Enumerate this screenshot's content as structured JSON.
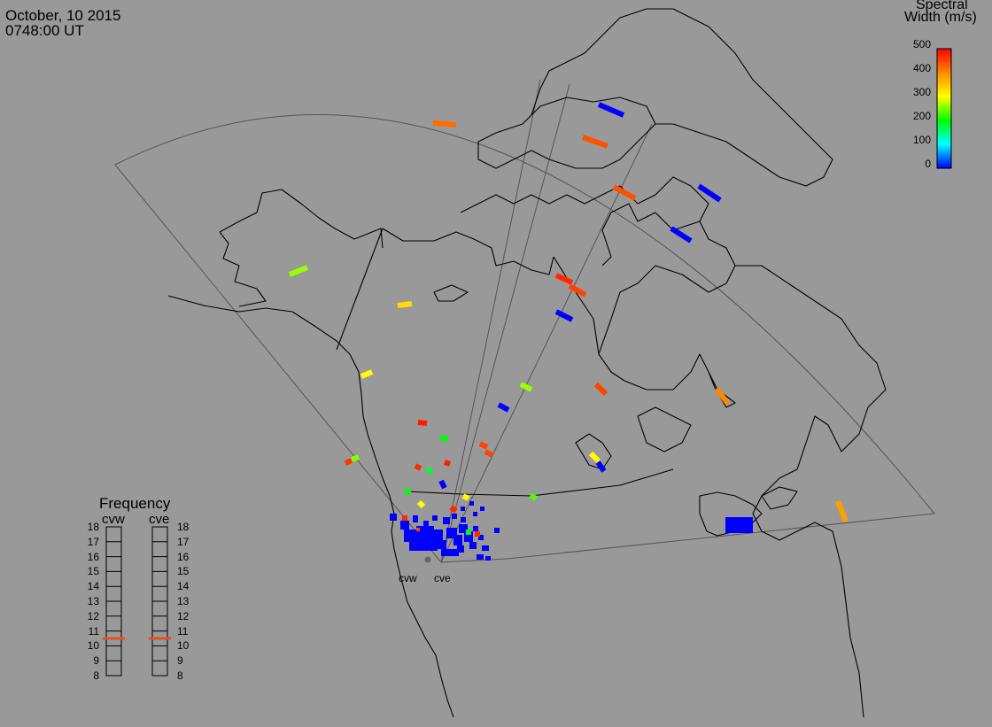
{
  "header": {
    "date": "October, 10 2015",
    "time": "0748:00 UT"
  },
  "colorbar": {
    "title_line1": "Spectral",
    "title_line2": "Width (m/s)",
    "ticks": [
      500,
      400,
      300,
      200,
      100,
      0
    ],
    "range": [
      0,
      500
    ],
    "colors": [
      "#0000ff",
      "#00ffff",
      "#00ff00",
      "#ffff00",
      "#ff0000"
    ]
  },
  "frequency": {
    "title": "Frequency",
    "radars": [
      {
        "name": "cvw",
        "value": 11
      },
      {
        "name": "cve",
        "value": 11
      }
    ],
    "ticks": [
      18,
      17,
      16,
      15,
      14,
      13,
      12,
      11,
      10,
      9,
      8
    ],
    "marker_color": "#e8501a"
  },
  "sites": [
    {
      "label": "cvw"
    },
    {
      "label": "cve"
    }
  ],
  "echoes": [
    {
      "x1": 489,
      "y1": 139,
      "x2": 515,
      "y2": 141,
      "width": 420
    },
    {
      "x1": 676,
      "y1": 118,
      "x2": 704,
      "y2": 130,
      "width": 0
    },
    {
      "x1": 658,
      "y1": 155,
      "x2": 686,
      "y2": 165,
      "width": 440
    },
    {
      "x1": 693,
      "y1": 211,
      "x2": 717,
      "y2": 224,
      "width": 440
    },
    {
      "x1": 789,
      "y1": 210,
      "x2": 813,
      "y2": 226,
      "width": 0
    },
    {
      "x1": 758,
      "y1": 258,
      "x2": 780,
      "y2": 272,
      "width": 0
    },
    {
      "x1": 628,
      "y1": 311,
      "x2": 646,
      "y2": 319,
      "width": 470
    },
    {
      "x1": 643,
      "y1": 323,
      "x2": 661,
      "y2": 333,
      "width": 450
    },
    {
      "x1": 628,
      "y1": 352,
      "x2": 646,
      "y2": 361,
      "width": 0
    },
    {
      "x1": 327,
      "y1": 310,
      "x2": 347,
      "y2": 302,
      "width": 260
    },
    {
      "x1": 449,
      "y1": 345,
      "x2": 465,
      "y2": 343,
      "width": 330
    },
    {
      "x1": 408,
      "y1": 425,
      "x2": 420,
      "y2": 420,
      "width": 300
    },
    {
      "x1": 588,
      "y1": 434,
      "x2": 600,
      "y2": 440,
      "width": 260
    },
    {
      "x1": 673,
      "y1": 434,
      "x2": 684,
      "y2": 445,
      "width": 450
    },
    {
      "x1": 809,
      "y1": 439,
      "x2": 822,
      "y2": 456,
      "width": 400
    },
    {
      "x1": 563,
      "y1": 457,
      "x2": 574,
      "y2": 463,
      "width": 0
    },
    {
      "x1": 472,
      "y1": 477,
      "x2": 482,
      "y2": 478,
      "width": 480
    },
    {
      "x1": 497,
      "y1": 494,
      "x2": 506,
      "y2": 496,
      "width": 200
    },
    {
      "x1": 542,
      "y1": 501,
      "x2": 550,
      "y2": 505,
      "width": 450
    },
    {
      "x1": 548,
      "y1": 510,
      "x2": 556,
      "y2": 514,
      "width": 450
    },
    {
      "x1": 667,
      "y1": 512,
      "x2": 676,
      "y2": 521,
      "width": 300
    },
    {
      "x1": 675,
      "y1": 522,
      "x2": 682,
      "y2": 532,
      "width": 0
    },
    {
      "x1": 390,
      "y1": 523,
      "x2": 397,
      "y2": 520,
      "width": 460
    },
    {
      "x1": 397,
      "y1": 519,
      "x2": 405,
      "y2": 516,
      "width": 250
    },
    {
      "x1": 469,
      "y1": 526,
      "x2": 475,
      "y2": 529,
      "width": 470
    },
    {
      "x1": 482,
      "y1": 530,
      "x2": 488,
      "y2": 533,
      "width": 180
    },
    {
      "x1": 502,
      "y1": 522,
      "x2": 508,
      "y2": 524,
      "width": 480
    },
    {
      "x1": 498,
      "y1": 543,
      "x2": 502,
      "y2": 551,
      "width": 0
    },
    {
      "x1": 457,
      "y1": 553,
      "x2": 463,
      "y2": 557,
      "width": 200
    },
    {
      "x1": 599,
      "y1": 559,
      "x2": 605,
      "y2": 563,
      "width": 230
    },
    {
      "x1": 473,
      "y1": 567,
      "x2": 478,
      "y2": 572,
      "width": 300
    },
    {
      "x1": 509,
      "y1": 573,
      "x2": 515,
      "y2": 577,
      "width": 470
    },
    {
      "x1": 523,
      "y1": 560,
      "x2": 529,
      "y2": 563,
      "width": 300
    },
    {
      "x1": 946,
      "y1": 566,
      "x2": 955,
      "y2": 589,
      "width": 380
    },
    {
      "x1": 819,
      "y1": 593,
      "x2": 850,
      "y2": 593,
      "width": 0
    }
  ],
  "cluster": [
    {
      "x": 440,
      "y": 580,
      "w": 8,
      "h": 8,
      "width": 0
    },
    {
      "x": 452,
      "y": 588,
      "w": 10,
      "h": 10,
      "width": 0
    },
    {
      "x": 456,
      "y": 598,
      "w": 14,
      "h": 14,
      "width": 0
    },
    {
      "x": 462,
      "y": 608,
      "w": 16,
      "h": 14,
      "width": 0
    },
    {
      "x": 470,
      "y": 594,
      "w": 20,
      "h": 20,
      "width": 0
    },
    {
      "x": 478,
      "y": 604,
      "w": 16,
      "h": 18,
      "width": 0
    },
    {
      "x": 488,
      "y": 598,
      "w": 12,
      "h": 14,
      "width": 0
    },
    {
      "x": 494,
      "y": 610,
      "w": 10,
      "h": 10,
      "width": 0
    },
    {
      "x": 498,
      "y": 620,
      "w": 14,
      "h": 8,
      "width": 0
    },
    {
      "x": 504,
      "y": 596,
      "w": 12,
      "h": 12,
      "width": 0
    },
    {
      "x": 512,
      "y": 604,
      "w": 10,
      "h": 12,
      "width": 0
    },
    {
      "x": 518,
      "y": 592,
      "w": 10,
      "h": 10,
      "width": 0
    },
    {
      "x": 524,
      "y": 600,
      "w": 10,
      "h": 12,
      "width": 0
    },
    {
      "x": 530,
      "y": 612,
      "w": 8,
      "h": 8,
      "width": 0
    },
    {
      "x": 508,
      "y": 620,
      "w": 10,
      "h": 8,
      "width": 0
    },
    {
      "x": 516,
      "y": 616,
      "w": 8,
      "h": 8,
      "width": 0
    },
    {
      "x": 500,
      "y": 584,
      "w": 8,
      "h": 8,
      "width": 0
    },
    {
      "x": 510,
      "y": 580,
      "w": 6,
      "h": 6,
      "width": 0
    },
    {
      "x": 520,
      "y": 584,
      "w": 6,
      "h": 6,
      "width": 0
    },
    {
      "x": 534,
      "y": 594,
      "w": 6,
      "h": 6,
      "width": 0
    },
    {
      "x": 540,
      "y": 604,
      "w": 6,
      "h": 6,
      "width": 0
    },
    {
      "x": 544,
      "y": 616,
      "w": 8,
      "h": 6,
      "width": 0
    },
    {
      "x": 538,
      "y": 626,
      "w": 8,
      "h": 6,
      "width": 0
    },
    {
      "x": 548,
      "y": 628,
      "w": 6,
      "h": 5,
      "width": 0
    },
    {
      "x": 558,
      "y": 596,
      "w": 6,
      "h": 6,
      "width": 0
    },
    {
      "x": 534,
      "y": 578,
      "w": 5,
      "h": 5,
      "width": 0
    },
    {
      "x": 542,
      "y": 572,
      "w": 5,
      "h": 5,
      "width": 0
    },
    {
      "x": 530,
      "y": 566,
      "w": 5,
      "h": 5,
      "width": 0
    },
    {
      "x": 520,
      "y": 572,
      "w": 5,
      "h": 5,
      "width": 0
    },
    {
      "x": 488,
      "y": 582,
      "w": 6,
      "h": 6,
      "width": 0
    },
    {
      "x": 478,
      "y": 588,
      "w": 6,
      "h": 6,
      "width": 0
    },
    {
      "x": 466,
      "y": 582,
      "w": 6,
      "h": 8,
      "width": 0
    },
    {
      "x": 454,
      "y": 582,
      "w": 6,
      "h": 6,
      "width": 470
    },
    {
      "x": 526,
      "y": 598,
      "w": 6,
      "h": 6,
      "width": 200
    },
    {
      "x": 470,
      "y": 596,
      "w": 4,
      "h": 4,
      "width": 450
    },
    {
      "x": 536,
      "y": 600,
      "w": 6,
      "h": 6,
      "width": 470
    }
  ]
}
